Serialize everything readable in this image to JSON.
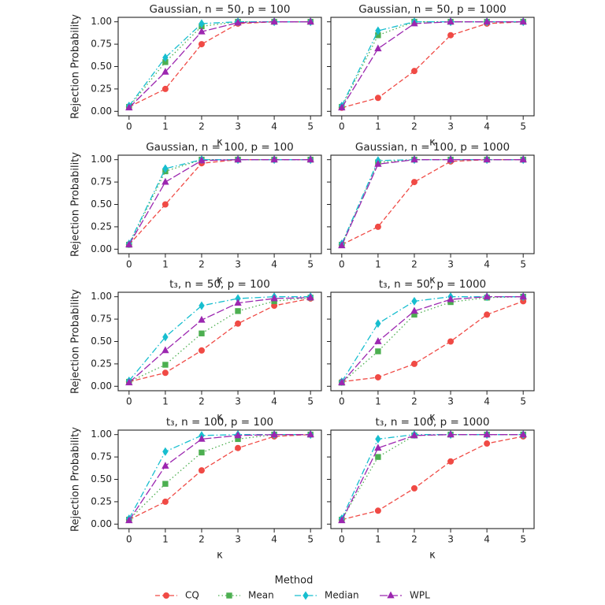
{
  "legend": {
    "title": "Method"
  },
  "chart_data": [
    {
      "type": "line",
      "title": "Gaussian, n = 50, p = 100",
      "xlabel": "κ",
      "ylabel": "Rejection Probability",
      "x": [
        0,
        1,
        2,
        3,
        4,
        5
      ],
      "xlim": [
        -0.3,
        5.3
      ],
      "xticks": [
        0,
        1,
        2,
        3,
        4,
        5
      ],
      "ylim": [
        -0.05,
        1.05
      ],
      "yticks": [
        {
          "value": 0,
          "label": "0.00"
        },
        {
          "value": 0.25,
          "label": "0.25"
        },
        {
          "value": 0.5,
          "label": "0.50"
        },
        {
          "value": 0.75,
          "label": "0.75"
        },
        {
          "value": 1,
          "label": "1.00"
        }
      ],
      "series": [
        {
          "name": "CQ",
          "color": "#f04a45",
          "marker": "circle",
          "linestyle": "dashed",
          "values": [
            0.05,
            0.25,
            0.75,
            0.98,
            1,
            1
          ]
        },
        {
          "name": "Mean",
          "color": "#4caf50",
          "marker": "square",
          "linestyle": "dotted",
          "values": [
            0.05,
            0.55,
            0.95,
            1,
            1,
            1
          ]
        },
        {
          "name": "Median",
          "color": "#17becf",
          "marker": "diamond",
          "linestyle": "dashdot",
          "values": [
            0.06,
            0.6,
            0.98,
            1,
            1,
            1
          ]
        },
        {
          "name": "WPL",
          "color": "#9c27b0",
          "marker": "triangle",
          "linestyle": "longdash",
          "values": [
            0.04,
            0.44,
            0.89,
            0.99,
            1,
            1
          ]
        }
      ]
    },
    {
      "type": "line",
      "title": "Gaussian, n = 50, p = 1000",
      "xlabel": "κ",
      "x": [
        0,
        1,
        2,
        3,
        4,
        5
      ],
      "xlim": [
        -0.3,
        5.3
      ],
      "xticks": [
        0,
        1,
        2,
        3,
        4,
        5
      ],
      "ylim": [
        -0.05,
        1.05
      ],
      "yticks": [
        0,
        0.25,
        0.5,
        0.75,
        1
      ],
      "series": [
        {
          "name": "CQ",
          "color": "#f04a45",
          "marker": "circle",
          "linestyle": "dashed",
          "values": [
            0.04,
            0.15,
            0.45,
            0.85,
            0.98,
            1
          ]
        },
        {
          "name": "Mean",
          "color": "#4caf50",
          "marker": "square",
          "linestyle": "dotted",
          "values": [
            0.05,
            0.85,
            1,
            1,
            1,
            1
          ]
        },
        {
          "name": "Median",
          "color": "#17becf",
          "marker": "diamond",
          "linestyle": "dashdot",
          "values": [
            0.06,
            0.9,
            1,
            1,
            1,
            1
          ]
        },
        {
          "name": "WPL",
          "color": "#9c27b0",
          "marker": "triangle",
          "linestyle": "longdash",
          "values": [
            0.04,
            0.7,
            0.98,
            1,
            1,
            1
          ]
        }
      ]
    },
    {
      "type": "line",
      "title": "Gaussian, n = 100, p = 100",
      "xlabel": "κ",
      "ylabel": "Rejection Probability",
      "x": [
        0,
        1,
        2,
        3,
        4,
        5
      ],
      "xlim": [
        -0.3,
        5.3
      ],
      "xticks": [
        0,
        1,
        2,
        3,
        4,
        5
      ],
      "ylim": [
        -0.05,
        1.05
      ],
      "yticks": [
        {
          "value": 0,
          "label": "0.00"
        },
        {
          "value": 0.25,
          "label": "0.25"
        },
        {
          "value": 0.5,
          "label": "0.50"
        },
        {
          "value": 0.75,
          "label": "0.75"
        },
        {
          "value": 1,
          "label": "1.00"
        }
      ],
      "series": [
        {
          "name": "CQ",
          "color": "#f04a45",
          "marker": "circle",
          "linestyle": "dashed",
          "values": [
            0.05,
            0.5,
            0.96,
            1,
            1,
            1
          ]
        },
        {
          "name": "Mean",
          "color": "#4caf50",
          "marker": "square",
          "linestyle": "dotted",
          "values": [
            0.05,
            0.87,
            1,
            1,
            1,
            1
          ]
        },
        {
          "name": "Median",
          "color": "#17becf",
          "marker": "diamond",
          "linestyle": "dashdot",
          "values": [
            0.06,
            0.9,
            1,
            1,
            1,
            1
          ]
        },
        {
          "name": "WPL",
          "color": "#9c27b0",
          "marker": "triangle",
          "linestyle": "longdash",
          "values": [
            0.05,
            0.75,
            0.99,
            1,
            1,
            1
          ]
        }
      ]
    },
    {
      "type": "line",
      "title": "Gaussian, n = 100, p = 1000",
      "xlabel": "κ",
      "x": [
        0,
        1,
        2,
        3,
        4,
        5
      ],
      "xlim": [
        -0.3,
        5.3
      ],
      "xticks": [
        0,
        1,
        2,
        3,
        4,
        5
      ],
      "ylim": [
        -0.05,
        1.05
      ],
      "yticks": [
        0,
        0.25,
        0.5,
        0.75,
        1
      ],
      "series": [
        {
          "name": "CQ",
          "color": "#f04a45",
          "marker": "circle",
          "linestyle": "dashed",
          "values": [
            0.05,
            0.25,
            0.75,
            0.98,
            1,
            1
          ]
        },
        {
          "name": "Mean",
          "color": "#4caf50",
          "marker": "square",
          "linestyle": "dotted",
          "values": [
            0.05,
            0.97,
            1,
            1,
            1,
            1
          ]
        },
        {
          "name": "Median",
          "color": "#17becf",
          "marker": "diamond",
          "linestyle": "dashdot",
          "values": [
            0.06,
            0.99,
            1,
            1,
            1,
            1
          ]
        },
        {
          "name": "WPL",
          "color": "#9c27b0",
          "marker": "triangle",
          "linestyle": "longdash",
          "values": [
            0.04,
            0.95,
            1,
            1,
            1,
            1
          ]
        }
      ]
    },
    {
      "type": "line",
      "title": "t₃, n = 50, p = 100",
      "xlabel": "κ",
      "ylabel": "Rejection Probability",
      "x": [
        0,
        1,
        2,
        3,
        4,
        5
      ],
      "xlim": [
        -0.3,
        5.3
      ],
      "xticks": [
        0,
        1,
        2,
        3,
        4,
        5
      ],
      "ylim": [
        -0.05,
        1.05
      ],
      "yticks": [
        {
          "value": 0,
          "label": "0.00"
        },
        {
          "value": 0.25,
          "label": "0.25"
        },
        {
          "value": 0.5,
          "label": "0.50"
        },
        {
          "value": 0.75,
          "label": "0.75"
        },
        {
          "value": 1,
          "label": "1.00"
        }
      ],
      "series": [
        {
          "name": "CQ",
          "color": "#f04a45",
          "marker": "circle",
          "linestyle": "dashed",
          "values": [
            0.05,
            0.15,
            0.4,
            0.7,
            0.9,
            0.98
          ]
        },
        {
          "name": "Mean",
          "color": "#4caf50",
          "marker": "square",
          "linestyle": "dotted",
          "values": [
            0.05,
            0.24,
            0.59,
            0.84,
            0.95,
            0.99
          ]
        },
        {
          "name": "Median",
          "color": "#17becf",
          "marker": "diamond",
          "linestyle": "dashdot",
          "values": [
            0.06,
            0.55,
            0.9,
            0.98,
            1,
            1
          ]
        },
        {
          "name": "WPL",
          "color": "#9c27b0",
          "marker": "triangle",
          "linestyle": "longdash",
          "values": [
            0.04,
            0.4,
            0.74,
            0.93,
            0.98,
            0.99
          ]
        }
      ]
    },
    {
      "type": "line",
      "title": "t₃, n = 50, p = 1000",
      "xlabel": "κ",
      "x": [
        0,
        1,
        2,
        3,
        4,
        5
      ],
      "xlim": [
        -0.3,
        5.3
      ],
      "xticks": [
        0,
        1,
        2,
        3,
        4,
        5
      ],
      "ylim": [
        -0.05,
        1.05
      ],
      "yticks": [
        0,
        0.25,
        0.5,
        0.75,
        1
      ],
      "series": [
        {
          "name": "CQ",
          "color": "#f04a45",
          "marker": "circle",
          "linestyle": "dashed",
          "values": [
            0.05,
            0.1,
            0.25,
            0.5,
            0.8,
            0.95
          ]
        },
        {
          "name": "Mean",
          "color": "#4caf50",
          "marker": "square",
          "linestyle": "dotted",
          "values": [
            0.04,
            0.39,
            0.8,
            0.94,
            0.99,
            1
          ]
        },
        {
          "name": "Median",
          "color": "#17becf",
          "marker": "diamond",
          "linestyle": "dashdot",
          "values": [
            0.05,
            0.7,
            0.95,
            1,
            1,
            1
          ]
        },
        {
          "name": "WPL",
          "color": "#9c27b0",
          "marker": "triangle",
          "linestyle": "longdash",
          "values": [
            0.04,
            0.5,
            0.84,
            0.97,
            1,
            1
          ]
        }
      ]
    },
    {
      "type": "line",
      "title": "t₃, n = 100, p = 100",
      "xlabel": "κ",
      "ylabel": "Rejection Probability",
      "x": [
        0,
        1,
        2,
        3,
        4,
        5
      ],
      "xlim": [
        -0.3,
        5.3
      ],
      "xticks": [
        0,
        1,
        2,
        3,
        4,
        5
      ],
      "ylim": [
        -0.05,
        1.05
      ],
      "yticks": [
        {
          "value": 0,
          "label": "0.00"
        },
        {
          "value": 0.25,
          "label": "0.25"
        },
        {
          "value": 0.5,
          "label": "0.50"
        },
        {
          "value": 0.75,
          "label": "0.75"
        },
        {
          "value": 1,
          "label": "1.00"
        }
      ],
      "series": [
        {
          "name": "CQ",
          "color": "#f04a45",
          "marker": "circle",
          "linestyle": "dashed",
          "values": [
            0.05,
            0.25,
            0.6,
            0.85,
            0.98,
            1
          ]
        },
        {
          "name": "Mean",
          "color": "#4caf50",
          "marker": "square",
          "linestyle": "dotted",
          "values": [
            0.05,
            0.45,
            0.8,
            0.95,
            1,
            1
          ]
        },
        {
          "name": "Median",
          "color": "#17becf",
          "marker": "diamond",
          "linestyle": "dashdot",
          "values": [
            0.06,
            0.81,
            0.99,
            1,
            1,
            1
          ]
        },
        {
          "name": "WPL",
          "color": "#9c27b0",
          "marker": "triangle",
          "linestyle": "longdash",
          "values": [
            0.04,
            0.65,
            0.95,
            0.99,
            1,
            1
          ]
        }
      ]
    },
    {
      "type": "line",
      "title": "t₃, n = 100, p = 1000",
      "xlabel": "κ",
      "x": [
        0,
        1,
        2,
        3,
        4,
        5
      ],
      "xlim": [
        -0.3,
        5.3
      ],
      "xticks": [
        0,
        1,
        2,
        3,
        4,
        5
      ],
      "ylim": [
        -0.05,
        1.05
      ],
      "yticks": [
        0,
        0.25,
        0.5,
        0.75,
        1
      ],
      "series": [
        {
          "name": "CQ",
          "color": "#f04a45",
          "marker": "circle",
          "linestyle": "dashed",
          "values": [
            0.05,
            0.15,
            0.4,
            0.7,
            0.9,
            0.98
          ]
        },
        {
          "name": "Mean",
          "color": "#4caf50",
          "marker": "square",
          "linestyle": "dotted",
          "values": [
            0.05,
            0.75,
            0.99,
            1,
            1,
            1
          ]
        },
        {
          "name": "Median",
          "color": "#17becf",
          "marker": "diamond",
          "linestyle": "dashdot",
          "values": [
            0.06,
            0.95,
            1,
            1,
            1,
            1
          ]
        },
        {
          "name": "WPL",
          "color": "#9c27b0",
          "marker": "triangle",
          "linestyle": "longdash",
          "values": [
            0.04,
            0.85,
            0.99,
            1,
            1,
            1
          ]
        }
      ]
    }
  ]
}
